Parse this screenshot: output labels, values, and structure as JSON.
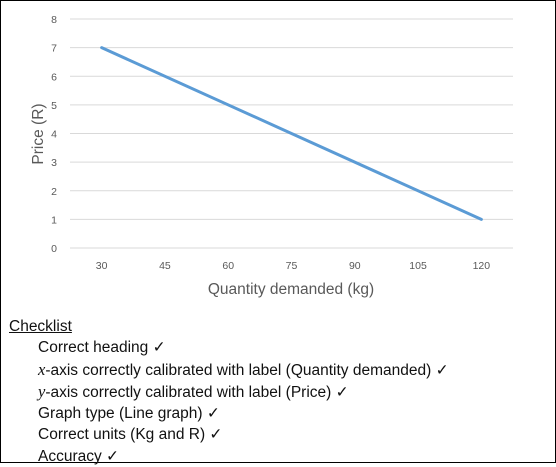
{
  "chart_data": {
    "type": "line",
    "x": [
      30,
      120
    ],
    "series": [
      {
        "values": [
          7,
          1
        ],
        "color": "#5b9bd5"
      }
    ],
    "categories": [
      "30",
      "45",
      "60",
      "75",
      "90",
      "105",
      "120"
    ],
    "xlim": [
      22.5,
      127.5
    ],
    "ylim": [
      0,
      8
    ],
    "yticks": [
      "0",
      "1",
      "2",
      "3",
      "4",
      "5",
      "6",
      "7",
      "8"
    ],
    "xlabel": "Quantity demanded (kg)",
    "ylabel": "Price (R)",
    "grid": "horizontal",
    "title": ""
  },
  "checklist": {
    "heading": "Checklist",
    "items": [
      {
        "text": "Correct heading ✓"
      },
      {
        "var": "x",
        "text": "-axis correctly calibrated with label (Quantity demanded) ✓"
      },
      {
        "var": "y",
        "text": "-axis correctly calibrated with label (Price) ✓"
      },
      {
        "text": "Graph type (Line graph) ✓"
      },
      {
        "text": "Correct units (Kg and R) ✓"
      },
      {
        "text": "Accuracy ✓"
      }
    ]
  }
}
